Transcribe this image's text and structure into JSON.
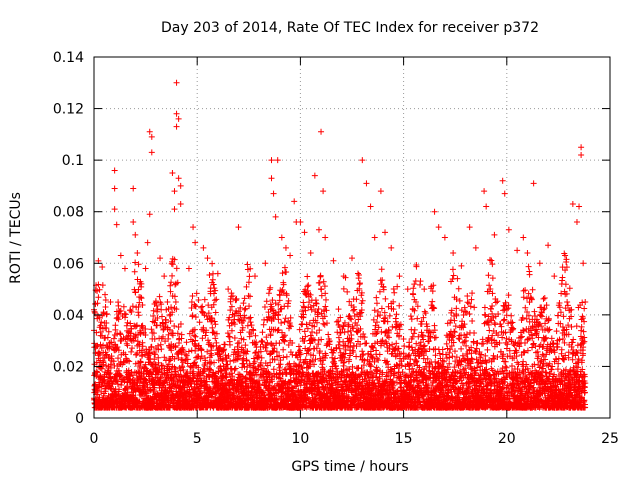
{
  "chart_data": {
    "type": "scatter",
    "title": "Day 203 of 2014, Rate Of TEC Index for receiver p372",
    "xlabel": "GPS time / hours",
    "ylabel": "ROTI / TECUs",
    "xlim": [
      0,
      25
    ],
    "ylim": [
      0,
      0.14
    ],
    "xticks": [
      0,
      5,
      10,
      15,
      20,
      25
    ],
    "xtick_labels": [
      "0",
      "5",
      "10",
      "15",
      "20",
      "25"
    ],
    "yticks": [
      0,
      0.02,
      0.04,
      0.06,
      0.08,
      0.1,
      0.12,
      0.14
    ],
    "ytick_labels": [
      "0",
      "0.02",
      "0.04",
      "0.06",
      "0.08",
      "0.1",
      "0.12",
      "0.14"
    ],
    "grid": true,
    "marker": "+",
    "color": "#ff0000",
    "series": [
      {
        "name": "ROTI",
        "note": "dense cloud of points; representative outliers listed, bulk between 0.003 and 0.03",
        "points": [
          [
            0.0,
            0.034
          ],
          [
            0.0,
            0.042
          ],
          [
            0.2,
            0.025
          ],
          [
            0.5,
            0.031
          ],
          [
            0.8,
            0.045
          ],
          [
            1.0,
            0.096
          ],
          [
            1.0,
            0.089
          ],
          [
            1.0,
            0.081
          ],
          [
            1.1,
            0.075
          ],
          [
            1.3,
            0.063
          ],
          [
            1.5,
            0.058
          ],
          [
            1.9,
            0.089
          ],
          [
            1.9,
            0.076
          ],
          [
            2.0,
            0.071
          ],
          [
            2.1,
            0.064
          ],
          [
            2.5,
            0.058
          ],
          [
            2.6,
            0.068
          ],
          [
            2.7,
            0.079
          ],
          [
            2.7,
            0.111
          ],
          [
            2.8,
            0.109
          ],
          [
            2.8,
            0.103
          ],
          [
            3.2,
            0.062
          ],
          [
            3.4,
            0.055
          ],
          [
            3.8,
            0.095
          ],
          [
            3.9,
            0.088
          ],
          [
            3.9,
            0.081
          ],
          [
            4.0,
            0.13
          ],
          [
            4.0,
            0.118
          ],
          [
            4.0,
            0.113
          ],
          [
            4.1,
            0.116
          ],
          [
            4.1,
            0.093
          ],
          [
            4.2,
            0.09
          ],
          [
            4.2,
            0.083
          ],
          [
            4.6,
            0.058
          ],
          [
            4.8,
            0.074
          ],
          [
            4.9,
            0.068
          ],
          [
            5.3,
            0.066
          ],
          [
            5.5,
            0.062
          ],
          [
            6.0,
            0.056
          ],
          [
            6.5,
            0.05
          ],
          [
            7.0,
            0.074
          ],
          [
            7.3,
            0.042
          ],
          [
            7.8,
            0.055
          ],
          [
            8.3,
            0.06
          ],
          [
            8.6,
            0.1
          ],
          [
            8.6,
            0.093
          ],
          [
            8.7,
            0.087
          ],
          [
            8.8,
            0.078
          ],
          [
            8.9,
            0.1
          ],
          [
            9.1,
            0.07
          ],
          [
            9.3,
            0.066
          ],
          [
            9.5,
            0.063
          ],
          [
            9.7,
            0.084
          ],
          [
            9.8,
            0.076
          ],
          [
            10.0,
            0.076
          ],
          [
            10.2,
            0.072
          ],
          [
            10.5,
            0.064
          ],
          [
            10.7,
            0.094
          ],
          [
            10.9,
            0.073
          ],
          [
            11.0,
            0.111
          ],
          [
            11.1,
            0.088
          ],
          [
            11.2,
            0.07
          ],
          [
            11.6,
            0.061
          ],
          [
            12.1,
            0.055
          ],
          [
            12.5,
            0.062
          ],
          [
            13.0,
            0.1
          ],
          [
            13.2,
            0.091
          ],
          [
            13.4,
            0.082
          ],
          [
            13.6,
            0.07
          ],
          [
            13.9,
            0.088
          ],
          [
            14.1,
            0.072
          ],
          [
            14.4,
            0.066
          ],
          [
            14.8,
            0.055
          ],
          [
            15.2,
            0.05
          ],
          [
            15.6,
            0.045
          ],
          [
            16.0,
            0.05
          ],
          [
            16.5,
            0.08
          ],
          [
            16.7,
            0.074
          ],
          [
            17.0,
            0.07
          ],
          [
            17.4,
            0.064
          ],
          [
            17.8,
            0.059
          ],
          [
            18.2,
            0.074
          ],
          [
            18.5,
            0.066
          ],
          [
            18.9,
            0.088
          ],
          [
            19.0,
            0.082
          ],
          [
            19.4,
            0.071
          ],
          [
            19.8,
            0.092
          ],
          [
            19.9,
            0.087
          ],
          [
            20.1,
            0.073
          ],
          [
            20.5,
            0.065
          ],
          [
            20.8,
            0.07
          ],
          [
            21.0,
            0.064
          ],
          [
            21.3,
            0.091
          ],
          [
            21.6,
            0.06
          ],
          [
            22.0,
            0.067
          ],
          [
            22.3,
            0.055
          ],
          [
            22.8,
            0.049
          ],
          [
            23.2,
            0.083
          ],
          [
            23.4,
            0.076
          ],
          [
            23.5,
            0.082
          ],
          [
            23.6,
            0.105
          ],
          [
            23.6,
            0.102
          ],
          [
            23.7,
            0.06
          ],
          [
            23.8,
            0.045
          ]
        ]
      }
    ]
  }
}
